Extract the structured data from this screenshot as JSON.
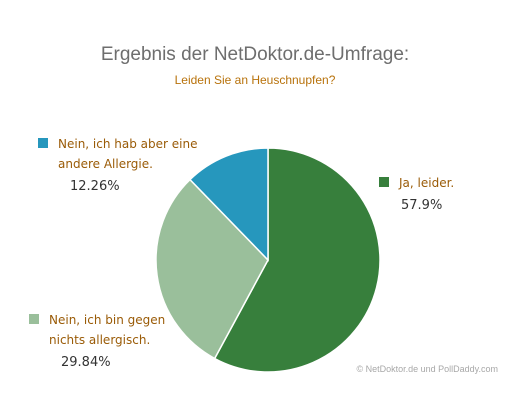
{
  "chart_data": {
    "type": "pie",
    "title": "Ergebnis der NetDoktor.de-Umfrage:",
    "subtitle": "Leiden Sie an Heuschnupfen?",
    "slices": [
      {
        "label": "Ja, leider.",
        "value": 57.9,
        "value_text": "57.9%",
        "color": "#377f3c"
      },
      {
        "label": "Nein, ich bin gegen nichts allergisch.",
        "value": 29.84,
        "value_text": "29.84%",
        "color": "#9abf9b"
      },
      {
        "label": "Nein, ich hab aber eine andere Allergie.",
        "value": 12.26,
        "value_text": "12.26%",
        "color": "#2697bd"
      }
    ],
    "legend": {
      "yes": {
        "line1": "Ja, leider.",
        "value": "57.9%"
      },
      "no": {
        "line1": "Nein, ich bin gegen",
        "line2": "nichts allergisch.",
        "value": "29.84%"
      },
      "other": {
        "line1": "Nein, ich hab aber eine",
        "line2": "andere Allergie.",
        "value": "12.26%"
      }
    },
    "start_angle_deg": 0,
    "direction": "clockwise",
    "slice_border_color": "#ffffff"
  },
  "copyright": "© NetDoktor.de und PollDaddy.com"
}
